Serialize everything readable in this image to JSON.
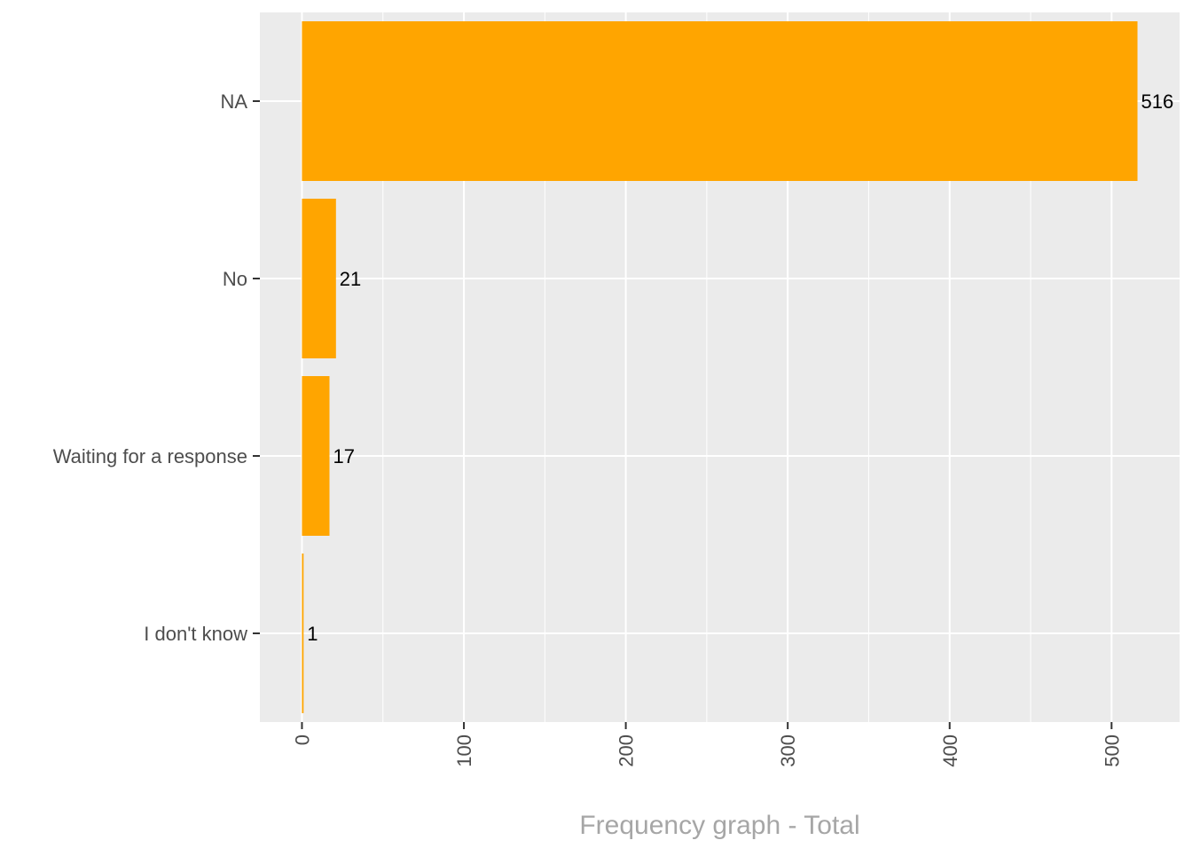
{
  "chart_data": {
    "type": "bar",
    "orientation": "horizontal",
    "categories": [
      "NA",
      "No",
      "Waiting for a response",
      "I don't know"
    ],
    "values": [
      516,
      21,
      17,
      1
    ],
    "data_labels": [
      "516",
      "21",
      "17",
      "1"
    ],
    "x_ticks": [
      0,
      100,
      200,
      300,
      400,
      500
    ],
    "x_tick_labels": [
      "0",
      "100",
      "200",
      "300",
      "400",
      "500"
    ],
    "xlim": [
      -26,
      542
    ],
    "xlabel": "Frequency graph - Total",
    "ylabel": "",
    "grid": true,
    "legend": "none",
    "colors": {
      "bar": "#FFA500",
      "panel": "#EBEBEB",
      "grid": "#FFFFFF",
      "tick_text": "#4D4D4D",
      "title_text": "#A6A6A6"
    }
  }
}
